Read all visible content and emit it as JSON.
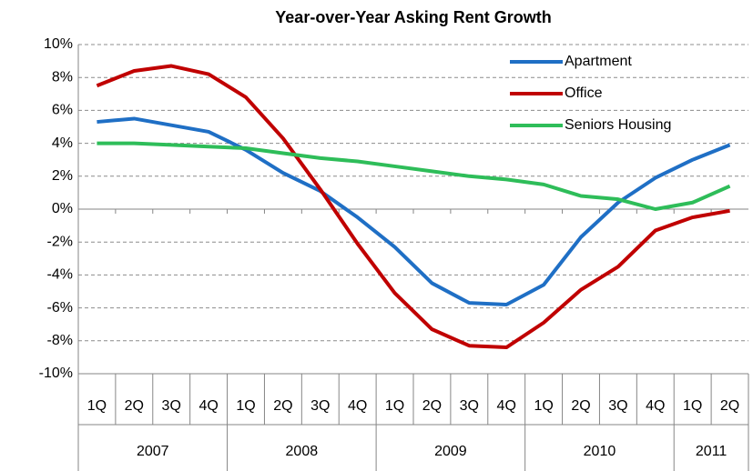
{
  "chart_data": {
    "type": "line",
    "title": "Year-over-Year Asking Rent Growth",
    "categories": [
      "1Q",
      "2Q",
      "3Q",
      "4Q",
      "1Q",
      "2Q",
      "3Q",
      "4Q",
      "1Q",
      "2Q",
      "3Q",
      "4Q",
      "1Q",
      "2Q",
      "3Q",
      "4Q",
      "1Q",
      "2Q"
    ],
    "groups": [
      "2007",
      "2008",
      "2009",
      "2010",
      "2011"
    ],
    "series": [
      {
        "name": "Apartment",
        "color": "#1f6fc5",
        "values": [
          5.3,
          5.5,
          5.1,
          4.7,
          3.6,
          2.2,
          1.1,
          -0.5,
          -2.3,
          -4.5,
          -5.7,
          -5.8,
          -4.6,
          -1.7,
          0.4,
          1.9,
          3.0,
          3.9
        ]
      },
      {
        "name": "Office",
        "color": "#c00000",
        "values": [
          7.5,
          8.4,
          8.7,
          8.2,
          6.8,
          4.3,
          1.2,
          -2.1,
          -5.1,
          -7.3,
          -8.3,
          -8.4,
          -6.9,
          -4.9,
          -3.5,
          -1.3,
          -0.5,
          -0.1
        ]
      },
      {
        "name": "Seniors Housing",
        "color": "#2ebd59",
        "values": [
          4.0,
          4.0,
          3.9,
          3.8,
          3.7,
          3.4,
          3.1,
          2.9,
          2.6,
          2.3,
          2.0,
          1.8,
          1.5,
          0.8,
          0.6,
          0.0,
          0.4,
          1.4
        ]
      }
    ],
    "ylim": [
      -10,
      10
    ],
    "yticks": [
      {
        "value": -10,
        "label": "-10%"
      },
      {
        "value": -8,
        "label": "-8%"
      },
      {
        "value": -6,
        "label": "-6%"
      },
      {
        "value": -4,
        "label": "-4%"
      },
      {
        "value": -2,
        "label": "-2%"
      },
      {
        "value": 0,
        "label": "0%"
      },
      {
        "value": 2,
        "label": "2%"
      },
      {
        "value": 4,
        "label": "4%"
      },
      {
        "value": 6,
        "label": "6%"
      },
      {
        "value": 8,
        "label": "8%"
      },
      {
        "value": 10,
        "label": "10%"
      }
    ],
    "grid": true,
    "legend": "top-right"
  }
}
